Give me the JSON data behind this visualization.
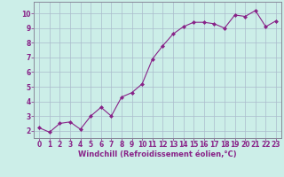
{
  "x": [
    0,
    1,
    2,
    3,
    4,
    5,
    6,
    7,
    8,
    9,
    10,
    11,
    12,
    13,
    14,
    15,
    16,
    17,
    18,
    19,
    20,
    21,
    22,
    23
  ],
  "y": [
    2.2,
    1.9,
    2.5,
    2.6,
    2.1,
    3.0,
    3.6,
    3.0,
    4.3,
    4.6,
    5.2,
    6.9,
    7.8,
    8.6,
    9.1,
    9.4,
    9.4,
    9.3,
    9.0,
    9.9,
    9.8,
    10.2,
    9.1,
    9.5
  ],
  "line_color": "#882288",
  "marker": "D",
  "marker_size": 2.0,
  "bg_color": "#cceee8",
  "grid_color": "#aabbcc",
  "xlabel": "Windchill (Refroidissement éolien,°C)",
  "xlabel_color": "#882288",
  "xlabel_fontsize": 6.0,
  "yticks": [
    2,
    3,
    4,
    5,
    6,
    7,
    8,
    9,
    10
  ],
  "xlim": [
    -0.5,
    23.5
  ],
  "ylim": [
    1.5,
    10.8
  ],
  "tick_label_color": "#882288",
  "tick_label_fontsize": 5.5,
  "grid_linewidth": 0.5,
  "line_width": 0.8
}
